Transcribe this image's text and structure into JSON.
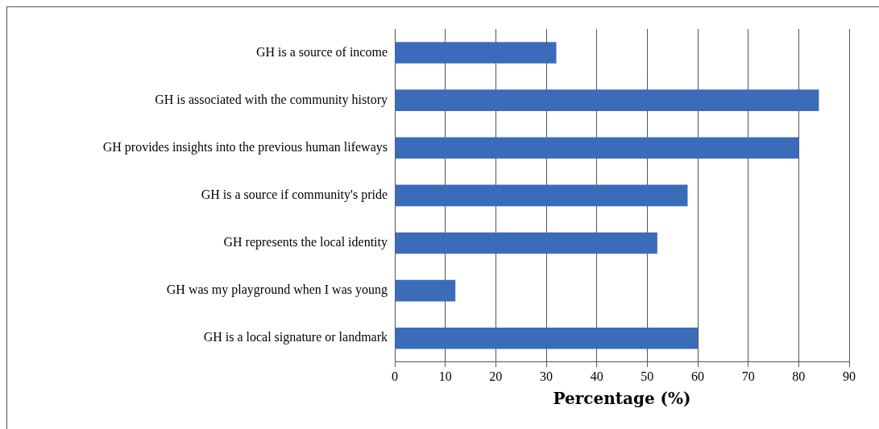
{
  "chart_data": {
    "type": "bar",
    "orientation": "horizontal",
    "xlabel": "Percentage (%)",
    "categories": [
      "GH is a source of income",
      "GH is associated with the community history",
      "GH provides insights into the previous human lifeways",
      "GH is a source if community's pride",
      "GH represents the local identity",
      "GH was my playground when I was young",
      "GH is a local signature or landmark"
    ],
    "values": [
      32,
      84,
      80,
      58,
      52,
      12,
      60
    ],
    "color": "#3b6cba",
    "xlim": [
      0,
      90
    ],
    "xticks": [
      0,
      10,
      20,
      30,
      40,
      50,
      60,
      70,
      80,
      90
    ],
    "grid": "x",
    "legend": false
  }
}
